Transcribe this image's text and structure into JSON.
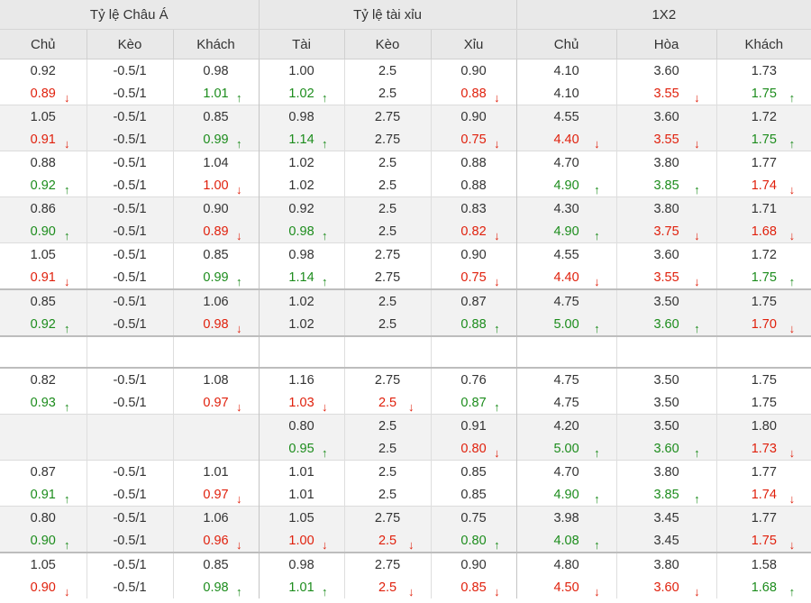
{
  "header": {
    "groups": [
      "Tỷ lệ Châu Á",
      "Tỷ lệ tài xỉu",
      "1X2"
    ],
    "columns": [
      "Chủ",
      "Kèo",
      "Khách",
      "Tài",
      "Kèo",
      "Xỉu",
      "Chủ",
      "Hòa",
      "Khách"
    ]
  },
  "colors": {
    "up": "#1c8c1c",
    "down": "#e0200c",
    "header_bg": "#e9e9e9",
    "alt_bg": "#f2f2f2"
  },
  "icons": {
    "up": "arrow-up-icon",
    "down": "arrow-down-icon"
  },
  "blocks": [
    {
      "type": "data",
      "rows": [
        [
          [
            "0.92",
            ""
          ],
          [
            "-0.5/1",
            ""
          ],
          [
            "0.98",
            ""
          ],
          [
            "1.00",
            ""
          ],
          [
            "2.5",
            ""
          ],
          [
            "0.90",
            ""
          ],
          [
            "4.10",
            ""
          ],
          [
            "3.60",
            ""
          ],
          [
            "1.73",
            ""
          ]
        ],
        [
          [
            "0.89",
            "down"
          ],
          [
            "-0.5/1",
            ""
          ],
          [
            "1.01",
            "up"
          ],
          [
            "1.02",
            "up"
          ],
          [
            "2.5",
            ""
          ],
          [
            "0.88",
            "down"
          ],
          [
            "4.10",
            ""
          ],
          [
            "3.55",
            "down"
          ],
          [
            "1.75",
            "up"
          ]
        ]
      ]
    },
    {
      "type": "data",
      "rows": [
        [
          [
            "1.05",
            ""
          ],
          [
            "-0.5/1",
            ""
          ],
          [
            "0.85",
            ""
          ],
          [
            "0.98",
            ""
          ],
          [
            "2.75",
            ""
          ],
          [
            "0.90",
            ""
          ],
          [
            "4.55",
            ""
          ],
          [
            "3.60",
            ""
          ],
          [
            "1.72",
            ""
          ]
        ],
        [
          [
            "0.91",
            "down"
          ],
          [
            "-0.5/1",
            ""
          ],
          [
            "0.99",
            "up"
          ],
          [
            "1.14",
            "up"
          ],
          [
            "2.75",
            ""
          ],
          [
            "0.75",
            "down"
          ],
          [
            "4.40",
            "down"
          ],
          [
            "3.55",
            "down"
          ],
          [
            "1.75",
            "up"
          ]
        ]
      ]
    },
    {
      "type": "data",
      "rows": [
        [
          [
            "0.88",
            ""
          ],
          [
            "-0.5/1",
            ""
          ],
          [
            "1.04",
            ""
          ],
          [
            "1.02",
            ""
          ],
          [
            "2.5",
            ""
          ],
          [
            "0.88",
            ""
          ],
          [
            "4.70",
            ""
          ],
          [
            "3.80",
            ""
          ],
          [
            "1.77",
            ""
          ]
        ],
        [
          [
            "0.92",
            "up"
          ],
          [
            "-0.5/1",
            ""
          ],
          [
            "1.00",
            "down"
          ],
          [
            "1.02",
            ""
          ],
          [
            "2.5",
            ""
          ],
          [
            "0.88",
            ""
          ],
          [
            "4.90",
            "up"
          ],
          [
            "3.85",
            "up"
          ],
          [
            "1.74",
            "down"
          ]
        ]
      ]
    },
    {
      "type": "data",
      "rows": [
        [
          [
            "0.86",
            ""
          ],
          [
            "-0.5/1",
            ""
          ],
          [
            "0.90",
            ""
          ],
          [
            "0.92",
            ""
          ],
          [
            "2.5",
            ""
          ],
          [
            "0.83",
            ""
          ],
          [
            "4.30",
            ""
          ],
          [
            "3.80",
            ""
          ],
          [
            "1.71",
            ""
          ]
        ],
        [
          [
            "0.90",
            "up"
          ],
          [
            "-0.5/1",
            ""
          ],
          [
            "0.89",
            "down"
          ],
          [
            "0.98",
            "up"
          ],
          [
            "2.5",
            ""
          ],
          [
            "0.82",
            "down"
          ],
          [
            "4.90",
            "up"
          ],
          [
            "3.75",
            "down"
          ],
          [
            "1.68",
            "down"
          ]
        ]
      ]
    },
    {
      "type": "data",
      "rows": [
        [
          [
            "1.05",
            ""
          ],
          [
            "-0.5/1",
            ""
          ],
          [
            "0.85",
            ""
          ],
          [
            "0.98",
            ""
          ],
          [
            "2.75",
            ""
          ],
          [
            "0.90",
            ""
          ],
          [
            "4.55",
            ""
          ],
          [
            "3.60",
            ""
          ],
          [
            "1.72",
            ""
          ]
        ],
        [
          [
            "0.91",
            "down"
          ],
          [
            "-0.5/1",
            ""
          ],
          [
            "0.99",
            "up"
          ],
          [
            "1.14",
            "up"
          ],
          [
            "2.75",
            ""
          ],
          [
            "0.75",
            "down"
          ],
          [
            "4.40",
            "down"
          ],
          [
            "3.55",
            "down"
          ],
          [
            "1.75",
            "up"
          ]
        ]
      ]
    },
    {
      "type": "data",
      "thick": true,
      "rows": [
        [
          [
            "0.85",
            ""
          ],
          [
            "-0.5/1",
            ""
          ],
          [
            "1.06",
            ""
          ],
          [
            "1.02",
            ""
          ],
          [
            "2.5",
            ""
          ],
          [
            "0.87",
            ""
          ],
          [
            "4.75",
            ""
          ],
          [
            "3.50",
            ""
          ],
          [
            "1.75",
            ""
          ]
        ],
        [
          [
            "0.92",
            "up"
          ],
          [
            "-0.5/1",
            ""
          ],
          [
            "0.98",
            "down"
          ],
          [
            "1.02",
            ""
          ],
          [
            "2.5",
            ""
          ],
          [
            "0.88",
            "up"
          ],
          [
            "5.00",
            "up"
          ],
          [
            "3.60",
            "up"
          ],
          [
            "1.70",
            "down"
          ]
        ]
      ]
    },
    {
      "type": "empty"
    },
    {
      "type": "data",
      "rows": [
        [
          [
            "0.82",
            ""
          ],
          [
            "-0.5/1",
            ""
          ],
          [
            "1.08",
            ""
          ],
          [
            "1.16",
            ""
          ],
          [
            "2.75",
            ""
          ],
          [
            "0.76",
            ""
          ],
          [
            "4.75",
            ""
          ],
          [
            "3.50",
            ""
          ],
          [
            "1.75",
            ""
          ]
        ],
        [
          [
            "0.93",
            "up"
          ],
          [
            "-0.5/1",
            ""
          ],
          [
            "0.97",
            "down"
          ],
          [
            "1.03",
            "down"
          ],
          [
            "2.5",
            "down"
          ],
          [
            "0.87",
            "up"
          ],
          [
            "4.75",
            ""
          ],
          [
            "3.50",
            ""
          ],
          [
            "1.75",
            ""
          ]
        ]
      ]
    },
    {
      "type": "data",
      "rows": [
        [
          [
            "",
            ""
          ],
          [
            "",
            ""
          ],
          [
            "",
            ""
          ],
          [
            "0.80",
            ""
          ],
          [
            "2.5",
            ""
          ],
          [
            "0.91",
            ""
          ],
          [
            "4.20",
            ""
          ],
          [
            "3.50",
            ""
          ],
          [
            "1.80",
            ""
          ]
        ],
        [
          [
            "",
            ""
          ],
          [
            "",
            ""
          ],
          [
            "",
            ""
          ],
          [
            "0.95",
            "up"
          ],
          [
            "2.5",
            ""
          ],
          [
            "0.80",
            "down"
          ],
          [
            "5.00",
            "up"
          ],
          [
            "3.60",
            "up"
          ],
          [
            "1.73",
            "down"
          ]
        ]
      ]
    },
    {
      "type": "data",
      "rows": [
        [
          [
            "0.87",
            ""
          ],
          [
            "-0.5/1",
            ""
          ],
          [
            "1.01",
            ""
          ],
          [
            "1.01",
            ""
          ],
          [
            "2.5",
            ""
          ],
          [
            "0.85",
            ""
          ],
          [
            "4.70",
            ""
          ],
          [
            "3.80",
            ""
          ],
          [
            "1.77",
            ""
          ]
        ],
        [
          [
            "0.91",
            "up"
          ],
          [
            "-0.5/1",
            ""
          ],
          [
            "0.97",
            "down"
          ],
          [
            "1.01",
            ""
          ],
          [
            "2.5",
            ""
          ],
          [
            "0.85",
            ""
          ],
          [
            "4.90",
            "up"
          ],
          [
            "3.85",
            "up"
          ],
          [
            "1.74",
            "down"
          ]
        ]
      ]
    },
    {
      "type": "data",
      "rows": [
        [
          [
            "0.80",
            ""
          ],
          [
            "-0.5/1",
            ""
          ],
          [
            "1.06",
            ""
          ],
          [
            "1.05",
            ""
          ],
          [
            "2.75",
            ""
          ],
          [
            "0.75",
            ""
          ],
          [
            "3.98",
            ""
          ],
          [
            "3.45",
            ""
          ],
          [
            "1.77",
            ""
          ]
        ],
        [
          [
            "0.90",
            "up"
          ],
          [
            "-0.5/1",
            ""
          ],
          [
            "0.96",
            "down"
          ],
          [
            "1.00",
            "down"
          ],
          [
            "2.5",
            "down"
          ],
          [
            "0.80",
            "up"
          ],
          [
            "4.08",
            "up"
          ],
          [
            "3.45",
            ""
          ],
          [
            "1.75",
            "down"
          ]
        ]
      ]
    },
    {
      "type": "data",
      "thick": true,
      "rows": [
        [
          [
            "1.05",
            ""
          ],
          [
            "-0.5/1",
            ""
          ],
          [
            "0.85",
            ""
          ],
          [
            "0.98",
            ""
          ],
          [
            "2.75",
            ""
          ],
          [
            "0.90",
            ""
          ],
          [
            "4.80",
            ""
          ],
          [
            "3.80",
            ""
          ],
          [
            "1.58",
            ""
          ]
        ],
        [
          [
            "0.90",
            "down"
          ],
          [
            "-0.5/1",
            ""
          ],
          [
            "0.98",
            "up"
          ],
          [
            "1.01",
            "up"
          ],
          [
            "2.5",
            "down"
          ],
          [
            "0.85",
            "down"
          ],
          [
            "4.50",
            "down"
          ],
          [
            "3.60",
            "down"
          ],
          [
            "1.68",
            "up"
          ]
        ]
      ]
    }
  ]
}
